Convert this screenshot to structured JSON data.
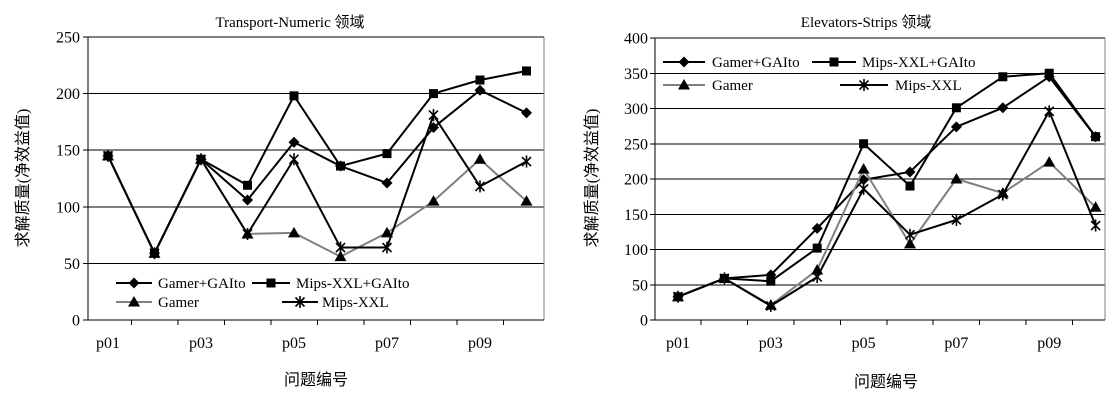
{
  "colors": {
    "background": "#ffffff",
    "axis": "#000000",
    "grid": "#000000",
    "plot_border": "#808080",
    "marker": "#000000"
  },
  "chart_data": [
    {
      "type": "line",
      "title": "Transport-Numeric 领域",
      "xlabel": "问题编号",
      "ylabel": "求解质量(净效益值)",
      "categories": [
        "p01",
        "",
        "p03",
        "",
        "p05",
        "",
        "p07",
        "",
        "p09",
        ""
      ],
      "ylim": [
        0,
        250
      ],
      "yticks": [
        0,
        50,
        100,
        150,
        200,
        250
      ],
      "grid": true,
      "legend_position": "bottom",
      "series": [
        {
          "name": "Gamer+GAIto",
          "marker": "diamond",
          "color": "#000000",
          "values": [
            145,
            59,
            142,
            106,
            157,
            136,
            121,
            170,
            203,
            183
          ]
        },
        {
          "name": "Mips-XXL+GAIto",
          "marker": "square",
          "color": "#000000",
          "values": [
            145,
            59,
            142,
            119,
            198,
            136,
            147,
            200,
            212,
            220
          ]
        },
        {
          "name": "Gamer",
          "marker": "triangle",
          "color": "#808080",
          "values": [
            145,
            59,
            142,
            76,
            77,
            56,
            77,
            105,
            142,
            105
          ]
        },
        {
          "name": "Mips-XXL",
          "marker": "asterisk",
          "color": "#000000",
          "values": [
            145,
            59,
            142,
            76,
            142,
            64,
            64,
            181,
            118,
            140
          ]
        }
      ]
    },
    {
      "type": "line",
      "title": "Elevators-Strips 领域",
      "xlabel": "问题编号",
      "ylabel": "求解质量(净效益值)",
      "categories": [
        "p01",
        "",
        "p03",
        "",
        "p05",
        "",
        "p07",
        "",
        "p09",
        ""
      ],
      "ylim": [
        0,
        400
      ],
      "yticks": [
        0,
        50,
        100,
        150,
        200,
        250,
        300,
        350,
        400
      ],
      "grid": true,
      "legend_position": "top-left",
      "series": [
        {
          "name": "Gamer+GAIto",
          "marker": "diamond",
          "color": "#000000",
          "values": [
            33,
            59,
            64,
            130,
            199,
            210,
            274,
            301,
            345,
            260
          ]
        },
        {
          "name": "Mips-XXL+GAIto",
          "marker": "square",
          "color": "#000000",
          "values": [
            33,
            59,
            55,
            102,
            250,
            190,
            301,
            345,
            350,
            260
          ]
        },
        {
          "name": "Gamer",
          "marker": "triangle",
          "color": "#808080",
          "values": [
            33,
            59,
            21,
            71,
            214,
            108,
            200,
            180,
            224,
            160
          ]
        },
        {
          "name": "Mips-XXL",
          "marker": "asterisk",
          "color": "#000000",
          "values": [
            33,
            59,
            20,
            61,
            186,
            121,
            142,
            178,
            296,
            134
          ]
        }
      ]
    }
  ]
}
